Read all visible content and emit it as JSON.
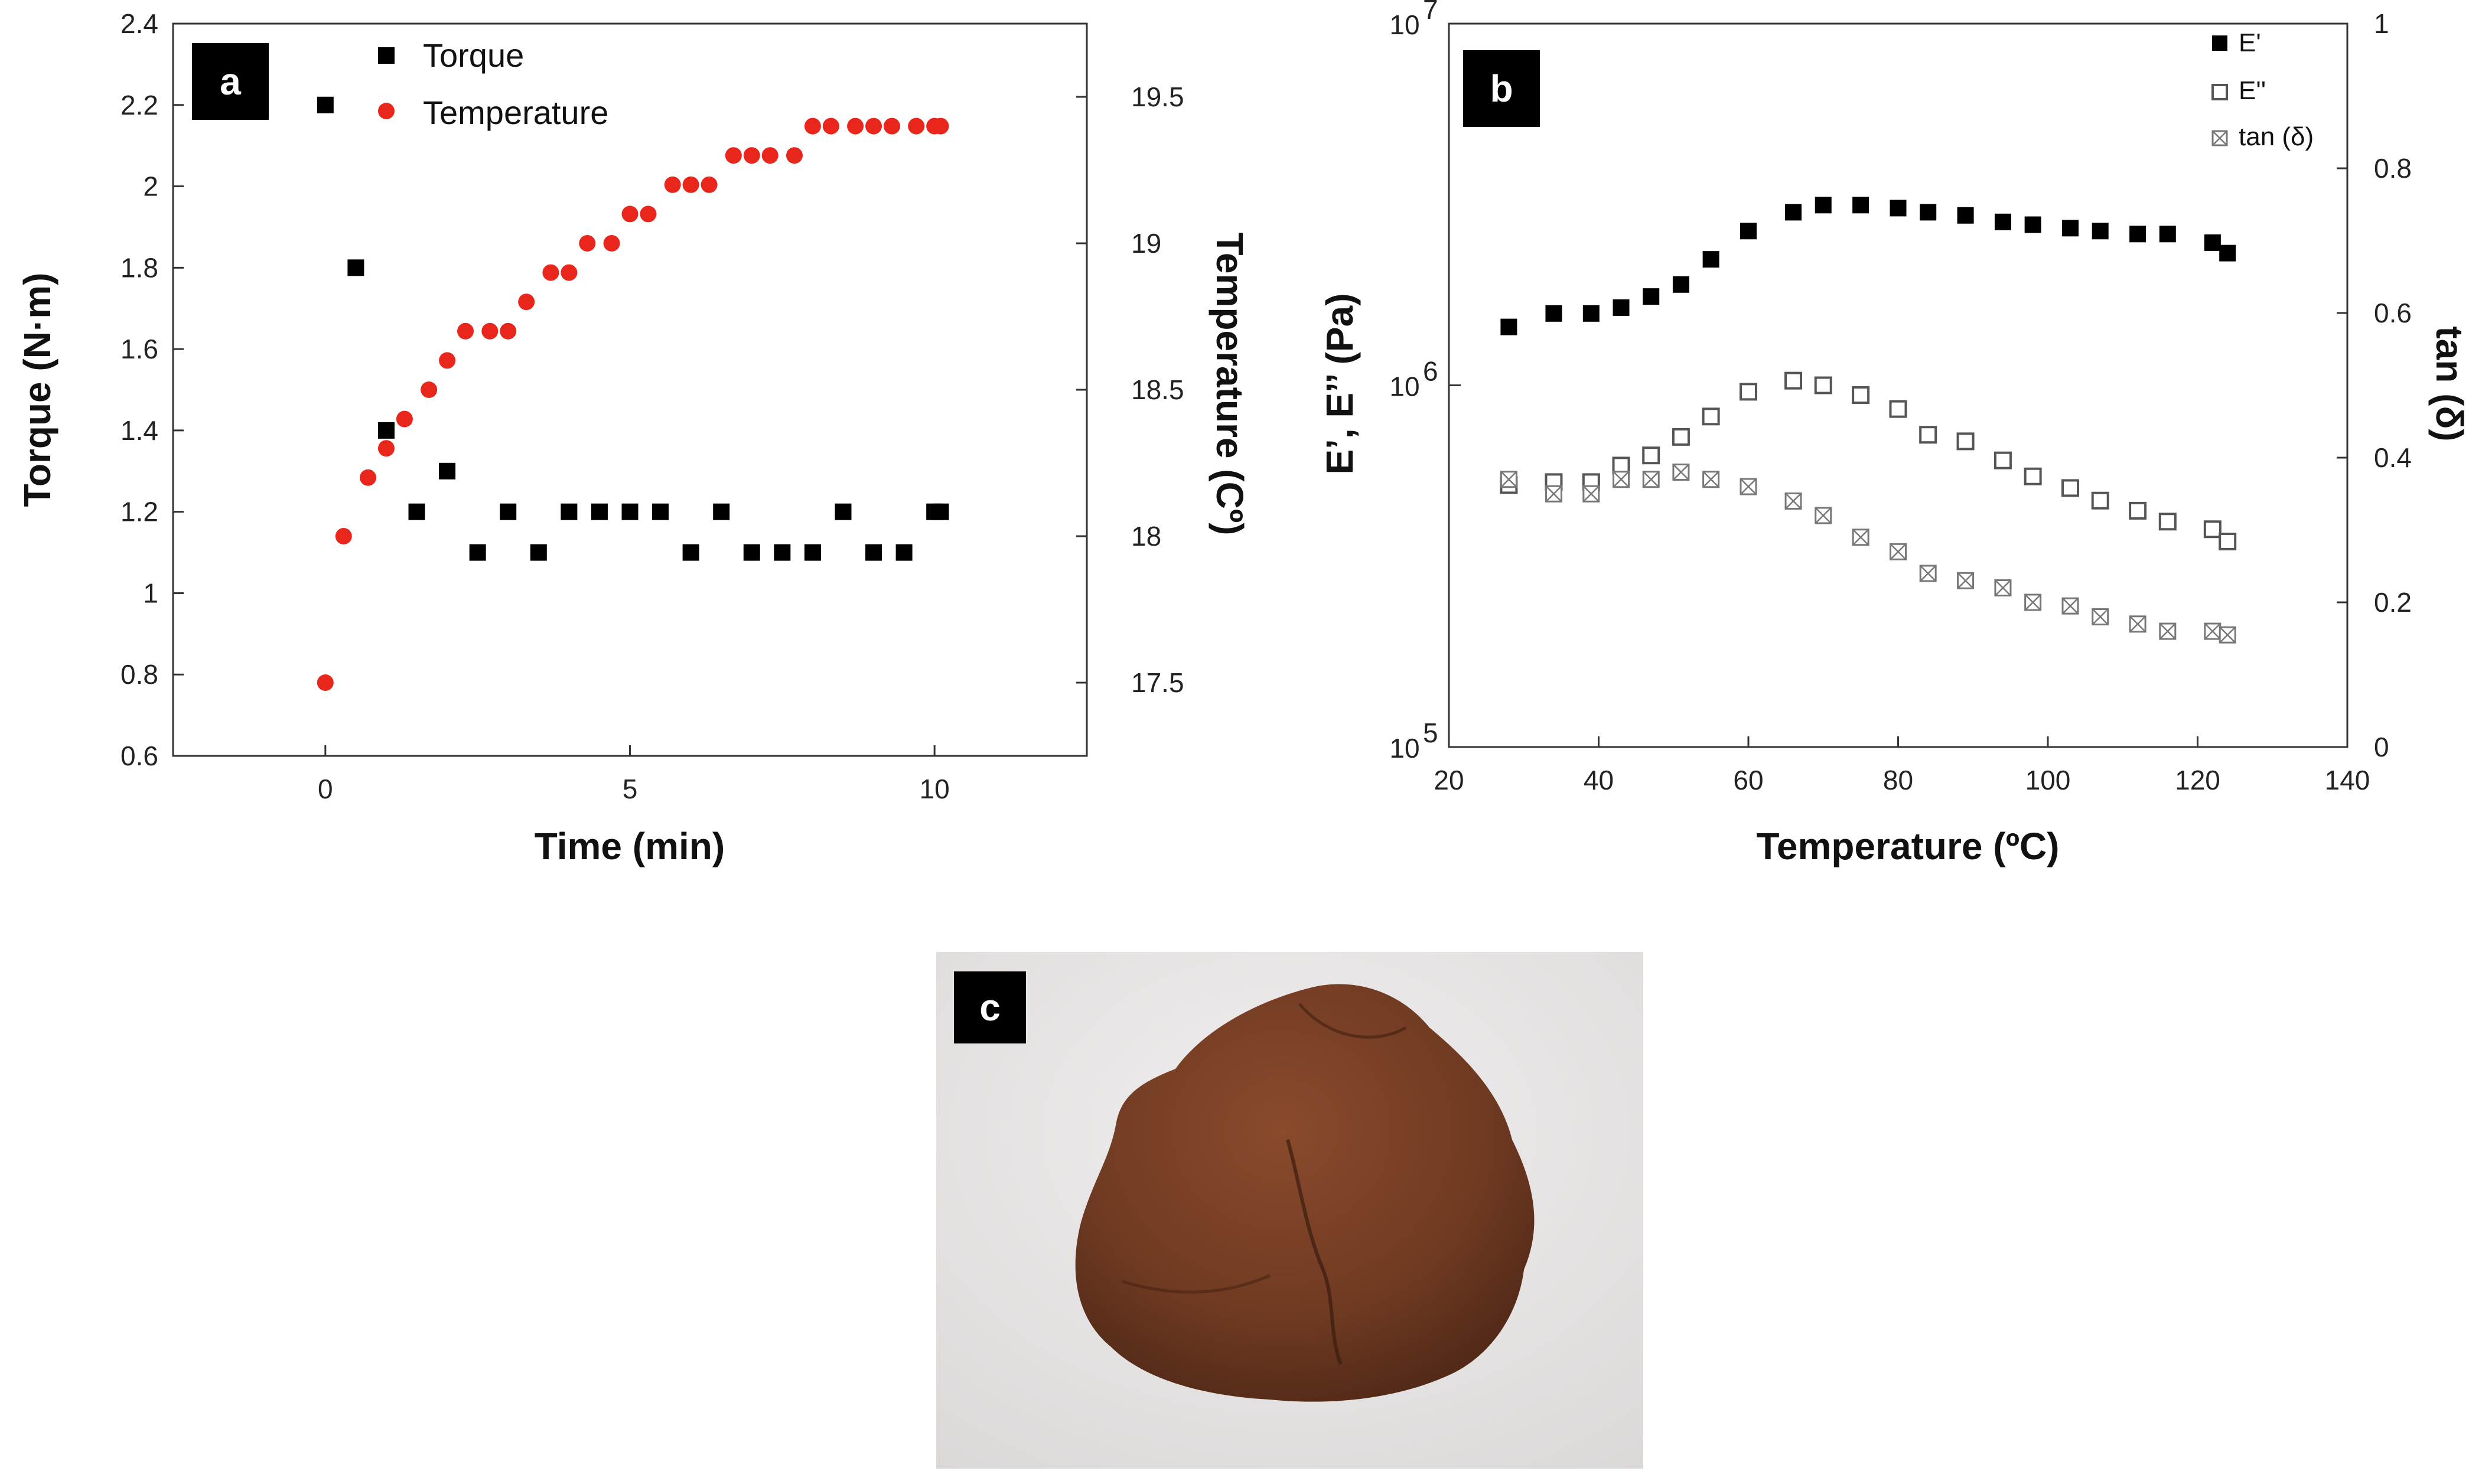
{
  "panels": {
    "a": {
      "letter": "a"
    },
    "b": {
      "letter": "b"
    },
    "c": {
      "letter": "c"
    }
  },
  "chart_data": [
    {
      "panel": "a",
      "type": "scatter",
      "xlabel": "Time (min)",
      "ylabel": "Torque (N·m)",
      "y2label": "Temperature (Cº)",
      "xlim": [
        -2.5,
        12.5
      ],
      "ylim": [
        0.6,
        2.4
      ],
      "y2lim": [
        17.25,
        19.75
      ],
      "x_ticks": [
        0,
        5,
        10
      ],
      "y_ticks": [
        0.6,
        0.8,
        1,
        1.2,
        1.4,
        1.6,
        1.8,
        2,
        2.2,
        2.4
      ],
      "y_tick_labels": [
        "0.6",
        "0.8",
        "1",
        "1.2",
        "1.4",
        "1.6",
        "1.8",
        "2",
        "2.2",
        "2.4"
      ],
      "y2_ticks": [
        17.5,
        18,
        18.5,
        19,
        19.5
      ],
      "y2_tick_labels": [
        "17.5",
        "18",
        "18.5",
        "19",
        "19.5"
      ],
      "legend_position": "top-left",
      "series": [
        {
          "name": "Torque",
          "axis": "left",
          "marker": "square",
          "color": "#000000",
          "x": [
            0,
            0.5,
            1,
            1.5,
            2,
            2.5,
            3,
            3.5,
            4,
            4.5,
            5,
            5.5,
            6,
            6.5,
            7,
            7.5,
            8,
            8.5,
            9,
            9.5,
            10,
            10.1
          ],
          "y": [
            2.2,
            1.8,
            1.4,
            1.2,
            1.3,
            1.1,
            1.2,
            1.1,
            1.2,
            1.2,
            1.2,
            1.2,
            1.1,
            1.2,
            1.1,
            1.1,
            1.1,
            1.2,
            1.1,
            1.1,
            1.2,
            1.2
          ]
        },
        {
          "name": "Temperature",
          "axis": "right",
          "marker": "circle",
          "color": "#e8261c",
          "x": [
            0,
            0.3,
            0.7,
            1.0,
            1.3,
            1.7,
            2.0,
            2.3,
            2.7,
            3.0,
            3.3,
            3.7,
            4.0,
            4.3,
            4.7,
            5.0,
            5.3,
            5.7,
            6.0,
            6.3,
            6.7,
            7.0,
            7.3,
            7.7,
            8.0,
            8.3,
            8.7,
            9.0,
            9.3,
            9.7,
            10.0,
            10.1
          ],
          "y": [
            17.5,
            18.0,
            18.2,
            18.3,
            18.4,
            18.5,
            18.6,
            18.7,
            18.7,
            18.7,
            18.8,
            18.9,
            18.9,
            19.0,
            19.0,
            19.1,
            19.1,
            19.2,
            19.2,
            19.2,
            19.3,
            19.3,
            19.3,
            19.3,
            19.4,
            19.4,
            19.4,
            19.4,
            19.4,
            19.4,
            19.4,
            19.4
          ]
        }
      ]
    },
    {
      "panel": "b",
      "type": "scatter",
      "xlabel": "Temperature (ºC)",
      "ylabel": "E’, E’’ (Pa)",
      "y2label": "tan (δ)",
      "xlim": [
        20,
        140
      ],
      "ylim": [
        100000,
        10000000
      ],
      "yscale": "log",
      "y2lim": [
        0,
        1
      ],
      "x_ticks": [
        20,
        40,
        60,
        80,
        100,
        120,
        140
      ],
      "y_ticks": [
        100000,
        1000000,
        10000000
      ],
      "y_tick_mantissa": [
        "10",
        "10",
        "10"
      ],
      "y_tick_exponents": [
        "5",
        "6",
        "7"
      ],
      "y2_ticks": [
        0,
        0.2,
        0.4,
        0.6,
        0.8,
        1
      ],
      "y2_tick_labels": [
        "0",
        "0.2",
        "0.4",
        "0.6",
        "0.8",
        "1"
      ],
      "legend_position": "top-right",
      "series": [
        {
          "name": "E'",
          "axis": "left",
          "marker": "filled-square",
          "color": "#000000",
          "x": [
            28,
            34,
            39,
            43,
            47,
            51,
            55,
            60,
            66,
            70,
            75,
            80,
            84,
            89,
            94,
            98,
            103,
            107,
            112,
            116,
            122,
            124
          ],
          "y": [
            1450000,
            1580000,
            1580000,
            1640000,
            1760000,
            1900000,
            2230000,
            2670000,
            3010000,
            3150000,
            3150000,
            3090000,
            3010000,
            2950000,
            2830000,
            2780000,
            2720000,
            2670000,
            2620000,
            2620000,
            2480000,
            2320000
          ]
        },
        {
          "name": "E''",
          "axis": "left",
          "marker": "open-square",
          "color": "#555555",
          "x": [
            28,
            34,
            39,
            43,
            47,
            51,
            55,
            60,
            66,
            70,
            75,
            80,
            84,
            89,
            94,
            98,
            103,
            107,
            112,
            116,
            122,
            124
          ],
          "y": [
            530000,
            540000,
            540000,
            600000,
            640000,
            720000,
            820000,
            960000,
            1030000,
            1000000,
            940000,
            860000,
            730000,
            700000,
            620000,
            560000,
            520000,
            480000,
            450000,
            420000,
            400000,
            370000
          ]
        },
        {
          "name": "tan (δ)",
          "axis": "right",
          "marker": "crossed-square",
          "color": "#777777",
          "x": [
            28,
            34,
            39,
            43,
            47,
            51,
            55,
            60,
            66,
            70,
            75,
            80,
            84,
            89,
            94,
            98,
            103,
            107,
            112,
            116,
            122,
            124
          ],
          "y": [
            0.37,
            0.35,
            0.35,
            0.37,
            0.37,
            0.38,
            0.37,
            0.36,
            0.34,
            0.32,
            0.29,
            0.27,
            0.24,
            0.23,
            0.22,
            0.2,
            0.195,
            0.18,
            0.17,
            0.16,
            0.16,
            0.155
          ]
        }
      ]
    }
  ]
}
